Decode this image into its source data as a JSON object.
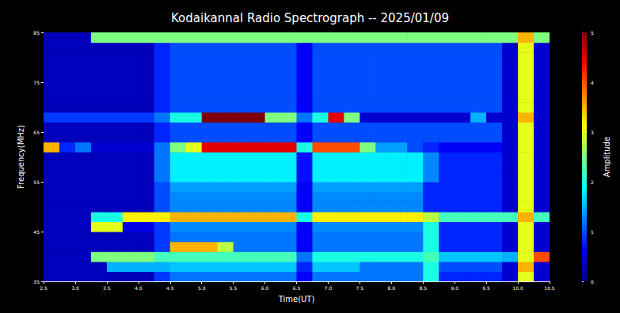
{
  "chart_data": {
    "type": "heatmap",
    "title": "Kodaikannal Radio Spectrograph -- 2025/01/09",
    "xlabel": "Time(UT)",
    "ylabel": "Frequency(MHz)",
    "xlim": [
      2.5,
      10.5
    ],
    "ylim": [
      35,
      85
    ],
    "xticks": [
      2.5,
      {
        "value": 3,
        "label": "3.0"
      },
      3.5,
      {
        "value": 4,
        "label": "4.0"
      },
      4.5,
      {
        "value": 5,
        "label": "5.0"
      },
      5.5,
      {
        "value": 6,
        "label": "6.0"
      },
      6.5,
      {
        "value": 7,
        "label": "7.0"
      },
      7.5,
      {
        "value": 8,
        "label": "8.0"
      },
      8.5,
      {
        "value": 9,
        "label": "9.0"
      },
      9.5,
      {
        "value": 10,
        "label": "10.0"
      },
      10.5
    ],
    "yticks": [
      35,
      45,
      55,
      65,
      75,
      85
    ],
    "x_bins": [
      2.5,
      2.75,
      3,
      3.25,
      3.5,
      3.75,
      4,
      4.25,
      4.5,
      4.75,
      5,
      5.25,
      5.5,
      5.75,
      6,
      6.25,
      6.5,
      6.75,
      7,
      7.25,
      7.5,
      7.75,
      8,
      8.25,
      8.5,
      8.75,
      9,
      9.25,
      9.5,
      9.75,
      10,
      10.25,
      10.5
    ],
    "y_bins": [
      35,
      37,
      39,
      41,
      43,
      45,
      47,
      49,
      51,
      53,
      55,
      57,
      59,
      61,
      63,
      65,
      67,
      69,
      71,
      73,
      75,
      77,
      79,
      81,
      83,
      85
    ],
    "z": [
      [
        0.3,
        0.3,
        0.3,
        0.3,
        0.3,
        0.3,
        0.3,
        0.9,
        1.2,
        1.2,
        1.2,
        1.2,
        1.2,
        1.2,
        1.2,
        1.2,
        0.6,
        1.2,
        1.2,
        1.2,
        1.2,
        1.2,
        1.2,
        1.2,
        2,
        0.8,
        0.8,
        0.8,
        0.8,
        0.4,
        3,
        0.4
      ],
      [
        0.3,
        0.3,
        0.3,
        0.3,
        1.5,
        1.5,
        1.5,
        1.5,
        1.6,
        1.6,
        1.6,
        1.6,
        1.6,
        1.6,
        1.6,
        1.6,
        0.8,
        1.6,
        1.6,
        1.6,
        1.2,
        1.2,
        1.2,
        1.2,
        2,
        1,
        1,
        1,
        1,
        0.4,
        3.5,
        0.4
      ],
      [
        0.3,
        0.3,
        0.3,
        2.5,
        2.5,
        2.5,
        2.5,
        2.2,
        2.2,
        2.2,
        2.2,
        2.2,
        2.2,
        2.2,
        2.2,
        2.2,
        1.2,
        2,
        2,
        2,
        2,
        2,
        2,
        2,
        2.2,
        1.6,
        1.6,
        1.6,
        1.6,
        1.5,
        3,
        4
      ],
      [
        0.3,
        0.3,
        0.3,
        0.3,
        0.3,
        0.3,
        0.3,
        0.9,
        3.5,
        3.5,
        3.5,
        2.8,
        1.2,
        1.2,
        1.2,
        1.2,
        0.6,
        1.2,
        1.2,
        1.2,
        1.2,
        1.2,
        1.2,
        1.2,
        2,
        0.8,
        0.8,
        0.8,
        0.8,
        0.4,
        3,
        0.4
      ],
      [
        0.3,
        0.3,
        0.3,
        0.3,
        0.3,
        0.3,
        0.3,
        0.9,
        1.2,
        1.2,
        1.2,
        1.2,
        1.2,
        1.2,
        1.2,
        1.2,
        0.6,
        1.2,
        1.2,
        1.2,
        1.2,
        1.2,
        1.2,
        1.2,
        2,
        0.8,
        0.8,
        0.8,
        0.8,
        0.4,
        3,
        0.4
      ],
      [
        0.3,
        0.3,
        0.3,
        3,
        3,
        0.5,
        0.5,
        0.9,
        1.3,
        1.3,
        1.3,
        1.3,
        1.3,
        1.3,
        1.3,
        1.3,
        0.6,
        1.3,
        1.3,
        1.3,
        1.3,
        1.3,
        1.3,
        1.3,
        2,
        0.8,
        0.8,
        0.8,
        0.8,
        0.4,
        3,
        0.4
      ],
      [
        0.3,
        0.3,
        0.3,
        2,
        2,
        3.2,
        3.2,
        3.2,
        3.5,
        3.5,
        3.5,
        3.5,
        3.5,
        3.5,
        3.5,
        3.5,
        2,
        3.2,
        3.2,
        3.2,
        3.2,
        3.2,
        3.2,
        3.2,
        2.8,
        2.2,
        2.2,
        2.2,
        2.2,
        2.2,
        3.5,
        2.2
      ],
      [
        0.3,
        0.3,
        0.3,
        0.3,
        0.3,
        0.3,
        0.3,
        1,
        1.3,
        1.3,
        1.3,
        1.3,
        1.3,
        1.3,
        1.3,
        1.3,
        0.6,
        1.3,
        1.3,
        1.3,
        1.3,
        1.3,
        1.3,
        1.3,
        0.8,
        0.8,
        0.8,
        0.8,
        0.8,
        0.4,
        3,
        0.4
      ],
      [
        0.3,
        0.3,
        0.3,
        0.3,
        0.3,
        0.3,
        0.3,
        1,
        1.3,
        1.3,
        1.3,
        1.3,
        1.3,
        1.3,
        1.3,
        1.3,
        0.6,
        1.3,
        1.3,
        1.3,
        1.3,
        1.3,
        1.3,
        1.3,
        0.8,
        0.8,
        0.8,
        0.8,
        0.8,
        0.4,
        3,
        0.4
      ],
      [
        0.3,
        0.3,
        0.3,
        0.3,
        0.3,
        0.3,
        0.3,
        1,
        1.4,
        1.4,
        1.4,
        1.4,
        1.4,
        1.4,
        1.4,
        1.4,
        0.6,
        1.4,
        1.4,
        1.4,
        1.4,
        1.4,
        1.4,
        1.4,
        0.8,
        0.8,
        0.8,
        0.8,
        0.8,
        0.4,
        3,
        0.4
      ],
      [
        0.3,
        0.3,
        0.3,
        0.3,
        0.3,
        0.3,
        0.3,
        1.2,
        1.8,
        1.8,
        1.8,
        1.8,
        1.8,
        1.8,
        1.8,
        1.8,
        0.7,
        1.8,
        1.8,
        1.8,
        1.8,
        1.8,
        1.8,
        1.8,
        1.3,
        0.8,
        0.8,
        0.8,
        0.8,
        0.4,
        3,
        0.4
      ],
      [
        0.3,
        0.3,
        0.3,
        0.3,
        0.3,
        0.3,
        0.3,
        1.2,
        1.8,
        1.8,
        1.8,
        1.8,
        1.8,
        1.8,
        1.8,
        1.8,
        0.7,
        1.8,
        1.8,
        1.8,
        1.8,
        1.8,
        1.8,
        1.8,
        1.3,
        0.8,
        0.8,
        0.8,
        0.8,
        0.4,
        3,
        0.4
      ],
      [
        0.3,
        0.3,
        0.3,
        0.3,
        0.3,
        0.3,
        0.3,
        1.2,
        1.8,
        1.8,
        1.8,
        1.8,
        1.8,
        1.8,
        1.8,
        1.8,
        0.7,
        1.8,
        1.8,
        1.8,
        1.8,
        1.8,
        1.8,
        1.8,
        1.3,
        0.8,
        0.8,
        0.8,
        0.8,
        0.4,
        3,
        0.4
      ],
      [
        3.5,
        0.8,
        1.2,
        0.4,
        0.4,
        0.4,
        0.4,
        1.2,
        2.5,
        3,
        4.5,
        4.5,
        4.5,
        4.5,
        4.5,
        4.5,
        2,
        4,
        4,
        4,
        2.5,
        1.4,
        1.4,
        1,
        0.8,
        0.6,
        0.6,
        0.6,
        0.6,
        0.4,
        3,
        0.4
      ],
      [
        0.3,
        0.3,
        0.3,
        0.3,
        0.3,
        0.3,
        0.3,
        0.8,
        1,
        1,
        1,
        1,
        1,
        1,
        1,
        1,
        0.6,
        1,
        1,
        1,
        1,
        1,
        1,
        1,
        1,
        1,
        1,
        1,
        1,
        0.4,
        3,
        0.4
      ],
      [
        0.3,
        0.3,
        0.3,
        0.3,
        0.3,
        0.3,
        0.3,
        0.8,
        1,
        1,
        1,
        1,
        1,
        1,
        1,
        1,
        0.6,
        1,
        1,
        1,
        1,
        1,
        1,
        1,
        1,
        1,
        1,
        1,
        1,
        0.4,
        3,
        0.4
      ],
      [
        0.9,
        0.9,
        0.9,
        0.9,
        0.9,
        0.9,
        0.9,
        1.2,
        2,
        2,
        5,
        5,
        5,
        5,
        2.5,
        2.5,
        1.2,
        2,
        4.5,
        2.5,
        0.4,
        0.4,
        0.4,
        0.4,
        0.4,
        0.4,
        0.4,
        1.5,
        0.4,
        0.4,
        3.5,
        0.4
      ],
      [
        0.3,
        0.3,
        0.3,
        0.3,
        0.3,
        0.3,
        0.3,
        0.8,
        1,
        1,
        1,
        1,
        1,
        1,
        1,
        1,
        0.6,
        1,
        1,
        1,
        1,
        1,
        1,
        1,
        1,
        1,
        1,
        1,
        1,
        0.4,
        3,
        0.4
      ],
      [
        0.3,
        0.3,
        0.3,
        0.3,
        0.3,
        0.3,
        0.3,
        0.8,
        1,
        1,
        1,
        1,
        1,
        1,
        1,
        1,
        0.6,
        1,
        1,
        1,
        1,
        1,
        1,
        1,
        1,
        1,
        1,
        1,
        1,
        0.4,
        3,
        0.4
      ],
      [
        0.3,
        0.3,
        0.3,
        0.3,
        0.3,
        0.3,
        0.3,
        0.8,
        1,
        1,
        1,
        1,
        1,
        1,
        1,
        1,
        0.6,
        1,
        1,
        1,
        1,
        1,
        1,
        1,
        1,
        1,
        1,
        1,
        1,
        0.4,
        3,
        0.4
      ],
      [
        0.3,
        0.3,
        0.3,
        0.3,
        0.3,
        0.3,
        0.3,
        0.8,
        1,
        1,
        1,
        1,
        1,
        1,
        1,
        1,
        0.6,
        1,
        1,
        1,
        1,
        1,
        1,
        1,
        1,
        1,
        1,
        1,
        1,
        0.4,
        3,
        0.4
      ],
      [
        0.3,
        0.3,
        0.3,
        0.3,
        0.3,
        0.3,
        0.3,
        0.8,
        1,
        1,
        1,
        1,
        1,
        1,
        1,
        1,
        0.6,
        1,
        1,
        1,
        1,
        1,
        1,
        1,
        1,
        1,
        1,
        1,
        1,
        0.4,
        3,
        0.4
      ],
      [
        0.3,
        0.3,
        0.3,
        0.3,
        0.3,
        0.3,
        0.3,
        0.8,
        1,
        1,
        1,
        1,
        1,
        1,
        1,
        1,
        0.6,
        1,
        1,
        1,
        1,
        1,
        1,
        1,
        1,
        1,
        1,
        1,
        1,
        0.4,
        3,
        0.4
      ],
      [
        0.3,
        0.3,
        0.3,
        0.3,
        0.3,
        0.3,
        0.3,
        0.8,
        1,
        1,
        1,
        1,
        1,
        1,
        1,
        1,
        0.6,
        1,
        1,
        1,
        1,
        1,
        1,
        1,
        1,
        1,
        1,
        1,
        1,
        0.4,
        3,
        0.4
      ],
      [
        0.3,
        0.3,
        0.3,
        2.5,
        2.5,
        2.5,
        2.5,
        2.5,
        2.5,
        2.5,
        2.5,
        2.5,
        2.5,
        2.5,
        2.5,
        2.5,
        2.5,
        2.5,
        2.5,
        2.5,
        2.5,
        2.5,
        2.5,
        2.5,
        2.5,
        2.5,
        2.5,
        2.5,
        2.5,
        2.5,
        3.5,
        2.5
      ]
    ],
    "colorbar": {
      "label": "Amplitude",
      "range": [
        0,
        5
      ],
      "ticks": [
        0,
        1,
        2,
        3,
        4,
        5
      ]
    }
  }
}
